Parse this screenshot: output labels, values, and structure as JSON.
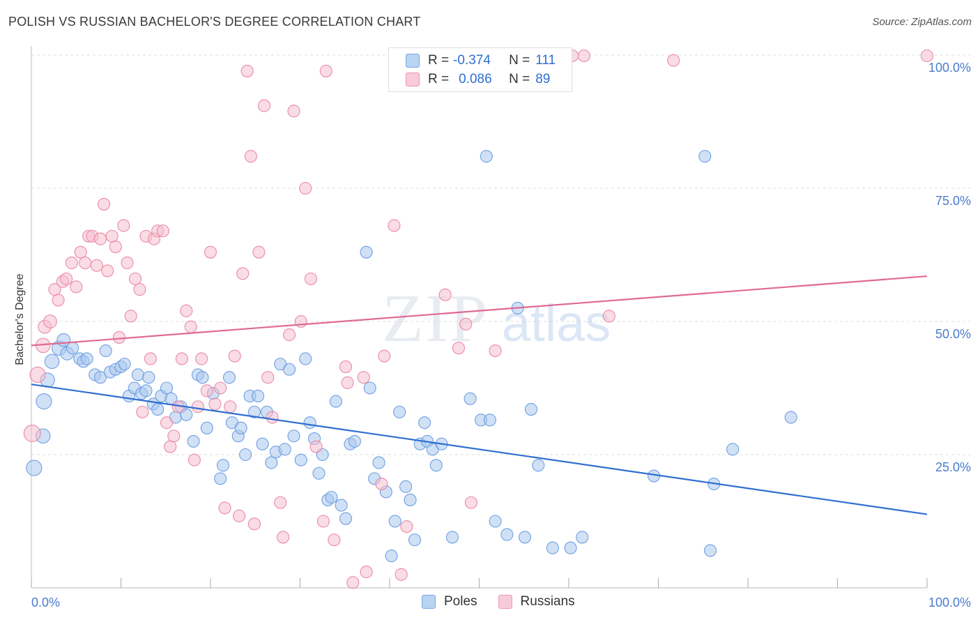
{
  "header": {
    "title": "POLISH VS RUSSIAN BACHELOR'S DEGREE CORRELATION CHART",
    "source": "Source: ZipAtlas.com"
  },
  "legend": {
    "rows": [
      {
        "r_label": "R =",
        "r_value": "-0.374",
        "n_label": "N =",
        "n_value": "111"
      },
      {
        "r_label": "R =",
        "r_value": "0.086",
        "n_label": "N =",
        "n_value": "89"
      }
    ],
    "bottom": [
      "Poles",
      "Russians"
    ]
  },
  "colors": {
    "poles_fill": "#a9c8ef",
    "poles_stroke": "#6f9fe0",
    "poles_line": "#2f6fd1",
    "russians_fill": "#f6bfd0",
    "russians_stroke": "#e98aa8",
    "russians_line": "#e06a93",
    "tick_text": "#4a7bd0",
    "grid": "#dddddd"
  },
  "chart_data": {
    "type": "scatter",
    "title": "POLISH VS RUSSIAN BACHELOR'S DEGREE CORRELATION CHART",
    "xlabel": "",
    "ylabel": "Bachelor's Degree",
    "xlim": [
      0,
      100
    ],
    "ylim": [
      0,
      100
    ],
    "x_tick_labels": [
      "0.0%",
      "100.0%"
    ],
    "y_ticks": [
      25,
      50,
      75,
      100
    ],
    "y_tick_labels": [
      "25.0%",
      "50.0%",
      "75.0%",
      "100.0%"
    ],
    "grid": true,
    "legend_position": "top-center",
    "watermark": "ZIPatlas",
    "series": [
      {
        "name": "Poles",
        "r": -0.374,
        "n": 111,
        "trend": {
          "x": [
            0,
            100
          ],
          "y": [
            38.2,
            13.8
          ]
        },
        "points": [
          [
            0.3,
            22.5,
            13
          ],
          [
            1.3,
            28.5,
            12
          ],
          [
            1.4,
            35,
            13
          ],
          [
            1.8,
            39,
            12
          ],
          [
            2.3,
            42.5,
            12
          ],
          [
            3.1,
            45,
            12
          ],
          [
            3.6,
            46.5,
            11
          ],
          [
            4,
            44,
            11
          ],
          [
            4.6,
            45,
            10
          ],
          [
            5.4,
            43,
            10
          ],
          [
            5.8,
            42.5,
            10
          ],
          [
            6.2,
            43,
            10
          ],
          [
            7.1,
            40,
            10
          ],
          [
            7.7,
            39.5,
            10
          ],
          [
            8.3,
            44.5,
            10
          ],
          [
            8.8,
            40.5,
            10
          ],
          [
            9.4,
            41,
            10
          ],
          [
            10,
            41.5,
            10
          ],
          [
            10.4,
            42,
            10
          ],
          [
            10.9,
            36,
            10
          ],
          [
            11.5,
            37.5,
            10
          ],
          [
            11.9,
            40,
            10
          ],
          [
            12.3,
            36.5,
            10
          ],
          [
            12.8,
            37,
            10
          ],
          [
            13.1,
            39.5,
            10
          ],
          [
            13.6,
            34.5,
            10
          ],
          [
            14.1,
            33.5,
            10
          ],
          [
            14.5,
            36,
            10
          ],
          [
            15.1,
            37.5,
            10
          ],
          [
            15.6,
            35.5,
            10
          ],
          [
            16.1,
            32,
            10
          ],
          [
            16.7,
            34,
            10
          ],
          [
            17.3,
            32.5,
            10
          ],
          [
            18.1,
            27.5,
            10
          ],
          [
            18.6,
            40,
            10
          ],
          [
            19.1,
            39.5,
            10
          ],
          [
            19.6,
            30,
            10
          ],
          [
            20.3,
            36.5,
            10
          ],
          [
            21.1,
            20.5,
            10
          ],
          [
            21.4,
            23,
            10
          ],
          [
            22.1,
            39.5,
            10
          ],
          [
            22.4,
            31,
            10
          ],
          [
            23.1,
            28.5,
            10
          ],
          [
            23.4,
            30,
            10
          ],
          [
            23.9,
            25,
            10
          ],
          [
            24.4,
            36,
            10
          ],
          [
            24.9,
            33,
            10
          ],
          [
            25.3,
            36,
            10
          ],
          [
            25.8,
            27,
            10
          ],
          [
            26.3,
            33,
            10
          ],
          [
            26.8,
            23.5,
            10
          ],
          [
            27.3,
            25.5,
            10
          ],
          [
            27.8,
            42,
            10
          ],
          [
            28.3,
            26,
            10
          ],
          [
            28.8,
            41,
            10
          ],
          [
            29.3,
            28.5,
            10
          ],
          [
            30.1,
            24,
            10
          ],
          [
            30.6,
            43,
            10
          ],
          [
            31.1,
            31,
            10
          ],
          [
            31.6,
            28,
            10
          ],
          [
            32.1,
            21.5,
            10
          ],
          [
            32.5,
            25,
            10
          ],
          [
            33.1,
            16.5,
            10
          ],
          [
            33.5,
            17,
            10
          ],
          [
            34,
            35,
            10
          ],
          [
            34.6,
            15.5,
            10
          ],
          [
            35.1,
            13,
            10
          ],
          [
            35.6,
            27,
            10
          ],
          [
            36.1,
            27.5,
            10
          ],
          [
            37.4,
            63,
            10
          ],
          [
            37.8,
            37.5,
            10
          ],
          [
            38.3,
            20.5,
            10
          ],
          [
            38.8,
            23.5,
            10
          ],
          [
            39.6,
            18,
            10
          ],
          [
            40.2,
            6,
            10
          ],
          [
            40.6,
            12.5,
            10
          ],
          [
            41.1,
            33,
            10
          ],
          [
            41.8,
            19,
            10
          ],
          [
            42.3,
            16.5,
            10
          ],
          [
            42.8,
            9,
            10
          ],
          [
            43.4,
            27,
            10
          ],
          [
            43.9,
            31,
            10
          ],
          [
            44.2,
            27.5,
            10
          ],
          [
            44.8,
            26,
            10
          ],
          [
            45.2,
            23,
            10
          ],
          [
            45.8,
            27,
            10
          ],
          [
            47,
            9.5,
            10
          ],
          [
            49,
            35.5,
            10
          ],
          [
            50.2,
            31.5,
            10
          ],
          [
            50.8,
            81,
            10
          ],
          [
            51.2,
            31.5,
            10
          ],
          [
            51.8,
            12.5,
            10
          ],
          [
            53.1,
            10,
            10
          ],
          [
            54.3,
            52.5,
            10
          ],
          [
            55.1,
            9.5,
            10
          ],
          [
            55.8,
            33.5,
            10
          ],
          [
            56.6,
            23,
            10
          ],
          [
            58.2,
            7.5,
            10
          ],
          [
            60.2,
            7.5,
            10
          ],
          [
            61.5,
            9.5,
            10
          ],
          [
            69.5,
            21,
            10
          ],
          [
            75.2,
            81,
            10
          ],
          [
            75.8,
            7,
            10
          ],
          [
            76.2,
            19.5,
            10
          ],
          [
            78.3,
            26,
            10
          ],
          [
            84.8,
            32,
            10
          ]
        ]
      },
      {
        "name": "Russians",
        "r": 0.086,
        "n": 89,
        "trend": {
          "x": [
            0,
            100
          ],
          "y": [
            45.5,
            58.5
          ]
        },
        "points": [
          [
            0.1,
            29,
            14
          ],
          [
            0.7,
            40,
            13
          ],
          [
            1.3,
            45.5,
            12
          ],
          [
            1.5,
            49,
            11
          ],
          [
            2.1,
            50,
            11
          ],
          [
            2.6,
            56,
            10
          ],
          [
            3,
            54,
            10
          ],
          [
            3.5,
            57.5,
            10
          ],
          [
            3.9,
            58,
            10
          ],
          [
            4.5,
            61,
            10
          ],
          [
            5,
            56.5,
            10
          ],
          [
            5.5,
            63,
            10
          ],
          [
            6,
            61,
            10
          ],
          [
            6.4,
            66,
            10
          ],
          [
            6.8,
            66,
            10
          ],
          [
            7.3,
            60.5,
            10
          ],
          [
            7.7,
            65.5,
            10
          ],
          [
            8.1,
            72,
            10
          ],
          [
            8.5,
            59.5,
            10
          ],
          [
            9,
            66,
            10
          ],
          [
            9.4,
            64,
            10
          ],
          [
            9.8,
            47,
            10
          ],
          [
            10.3,
            68,
            10
          ],
          [
            10.7,
            61,
            10
          ],
          [
            11.1,
            51,
            10
          ],
          [
            11.6,
            58,
            10
          ],
          [
            12.1,
            56,
            10
          ],
          [
            12.4,
            33,
            10
          ],
          [
            12.8,
            66,
            10
          ],
          [
            13.3,
            43,
            10
          ],
          [
            13.7,
            65.5,
            10
          ],
          [
            14.1,
            67,
            10
          ],
          [
            14.7,
            67,
            10
          ],
          [
            15.1,
            31,
            10
          ],
          [
            15.5,
            26.5,
            10
          ],
          [
            15.9,
            28.5,
            10
          ],
          [
            16.4,
            34,
            10
          ],
          [
            16.8,
            43,
            10
          ],
          [
            17.3,
            52,
            10
          ],
          [
            17.8,
            49,
            10
          ],
          [
            18.2,
            24,
            10
          ],
          [
            18.6,
            34,
            10
          ],
          [
            19,
            43,
            10
          ],
          [
            19.6,
            37,
            10
          ],
          [
            20,
            63,
            10
          ],
          [
            20.5,
            34.5,
            10
          ],
          [
            21.1,
            37.5,
            10
          ],
          [
            21.6,
            15,
            10
          ],
          [
            22.2,
            34,
            10
          ],
          [
            22.7,
            43.5,
            10
          ],
          [
            23.2,
            13.5,
            10
          ],
          [
            23.6,
            59,
            10
          ],
          [
            24.1,
            97,
            10
          ],
          [
            24.5,
            81,
            10
          ],
          [
            24.9,
            12,
            10
          ],
          [
            25.4,
            63,
            10
          ],
          [
            26,
            90.5,
            10
          ],
          [
            26.4,
            39.5,
            10
          ],
          [
            26.9,
            32,
            10
          ],
          [
            27.8,
            16,
            10
          ],
          [
            28.1,
            9.5,
            10
          ],
          [
            28.8,
            47.5,
            10
          ],
          [
            29.3,
            89.5,
            10
          ],
          [
            30.1,
            50,
            10
          ],
          [
            30.6,
            75,
            10
          ],
          [
            31.2,
            58,
            10
          ],
          [
            31.8,
            26.5,
            10
          ],
          [
            32.6,
            12.5,
            10
          ],
          [
            32.9,
            97,
            10
          ],
          [
            33.8,
            9,
            10
          ],
          [
            35.1,
            41.5,
            10
          ],
          [
            35.3,
            38.5,
            10
          ],
          [
            35.9,
            1,
            10
          ],
          [
            37.1,
            39.5,
            10
          ],
          [
            37.4,
            3,
            10
          ],
          [
            39.1,
            19.5,
            10
          ],
          [
            39.4,
            43.5,
            10
          ],
          [
            40.5,
            68,
            10
          ],
          [
            41.3,
            2.5,
            10
          ],
          [
            41.9,
            11.5,
            10
          ],
          [
            46.2,
            55,
            10
          ],
          [
            47.7,
            45,
            10
          ],
          [
            48.5,
            49.5,
            10
          ],
          [
            49.1,
            16,
            10
          ],
          [
            51.8,
            44.5,
            10
          ],
          [
            60.4,
            104.5,
            10
          ],
          [
            61.7,
            104.5,
            10
          ],
          [
            64.5,
            51,
            10
          ],
          [
            71.7,
            99,
            10
          ],
          [
            100,
            104.5,
            10
          ]
        ]
      }
    ]
  }
}
